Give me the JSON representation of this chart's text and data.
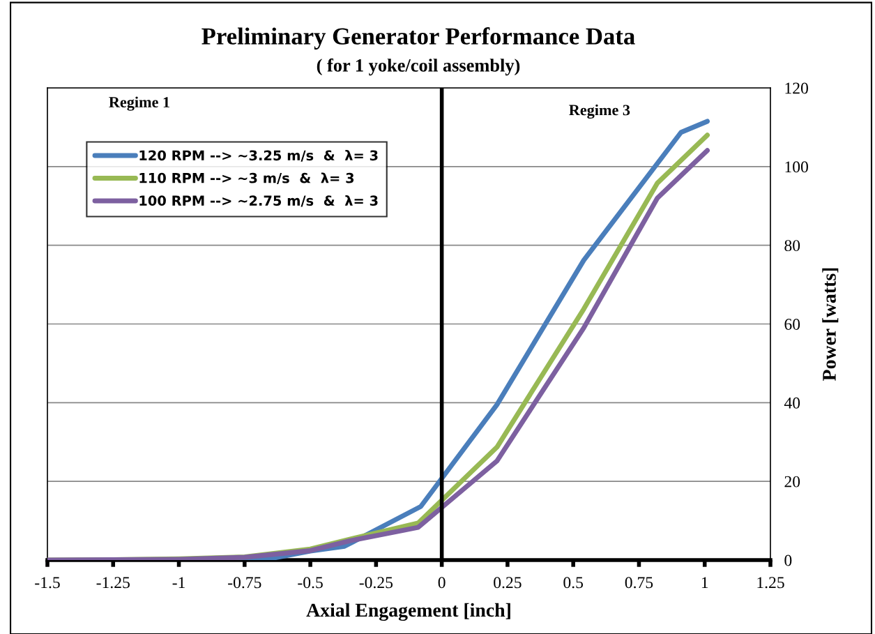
{
  "chart_data": {
    "type": "line",
    "title": "Preliminary Generator Performance Data",
    "subtitle": "( for 1 yoke/coil assembly)",
    "xlabel": "Axial Engagement [inch]",
    "ylabel": "Power [watts]",
    "annotations": [
      "Regime 1",
      "Regime 3"
    ],
    "series": [
      {
        "name": "120 RPM --> ~3.25 m/s  &  λ= 3",
        "color": "#4a7ebb",
        "x": [
          -1,
          -0.75,
          -0.64,
          -0.5,
          -0.37,
          -0.08,
          0.21,
          0.54,
          0.91,
          1.01
        ],
        "values": [
          0.2,
          0.4,
          0.5,
          2.3,
          3.5,
          13.6,
          39.5,
          76.2,
          108.7,
          111.5
        ]
      },
      {
        "name": "110 RPM --> ~3 m/s  &  λ= 3",
        "color": "#98b954",
        "x": [
          -1.5,
          -1.25,
          -1,
          -0.75,
          -0.5,
          -0.35,
          -0.09,
          0.21,
          0.54,
          0.82,
          1.01
        ],
        "values": [
          0,
          0.1,
          0.3,
          0.8,
          2.8,
          5.3,
          9.4,
          28.7,
          63.8,
          95.8,
          108.0
        ]
      },
      {
        "name": "100 RPM --> ~2.75 m/s  &  λ= 3",
        "color": "#7d60a0",
        "x": [
          -1.5,
          -1.25,
          -1,
          -0.75,
          -0.5,
          -0.35,
          -0.09,
          0.21,
          0.54,
          0.82,
          1.01
        ],
        "values": [
          0,
          0.1,
          0.2,
          0.7,
          2.4,
          4.9,
          8.3,
          25.2,
          59.0,
          92.0,
          104.1
        ]
      }
    ],
    "xlim": [
      -1.5,
      1.25
    ],
    "xticks": [
      -1.5,
      -1.25,
      -1,
      -0.75,
      -0.5,
      -0.25,
      0,
      0.25,
      0.5,
      0.75,
      1,
      1.25
    ],
    "ylim": [
      0,
      120
    ],
    "yticks": [
      0,
      20,
      40,
      60,
      80,
      100,
      120
    ],
    "ref_lines": [
      {
        "axis": "x",
        "value": 0,
        "color": "#000000"
      }
    ],
    "grid": "y",
    "legend": "top left",
    "marker": "none",
    "line_style": "solid"
  }
}
